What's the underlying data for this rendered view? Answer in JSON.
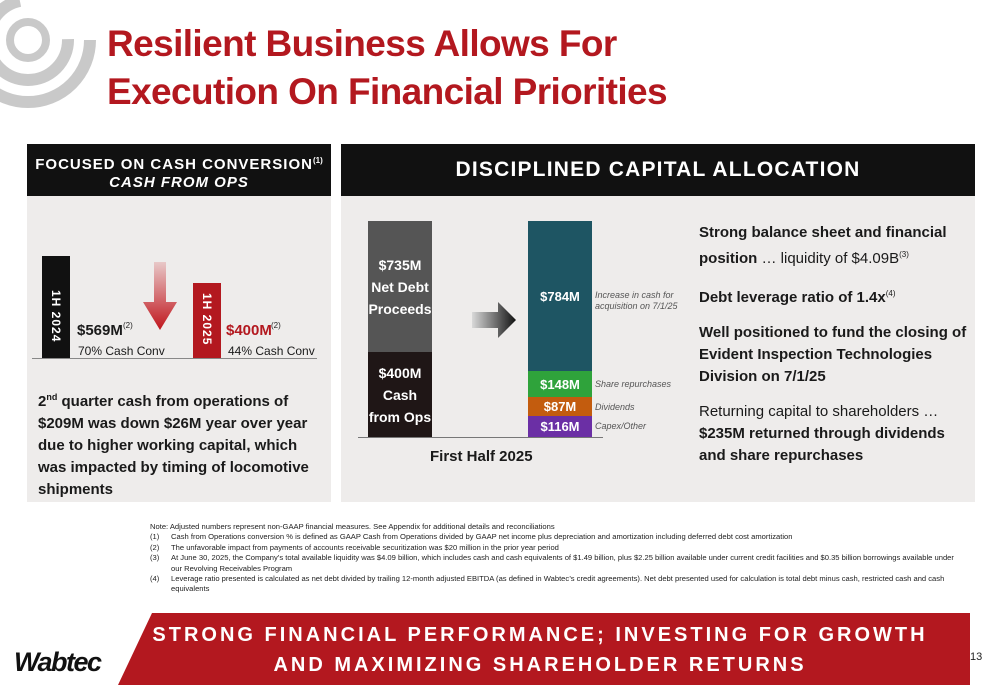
{
  "title": {
    "line1": "Resilient Business Allows For",
    "line2": "Execution On Financial Priorities"
  },
  "left_panel": {
    "header_line1": "FOCUSED ON CASH CONVERSION",
    "header_sup": "(1)",
    "header_line2": "CASH FROM OPS",
    "bar_2024_label": "1H 2024",
    "bar_2024_value": "$569M",
    "bar_2024_sup": "(2)",
    "bar_2024_conv": "70% Cash Conv",
    "bar_2025_label": "1H 2025",
    "bar_2025_value": "$400M",
    "bar_2025_sup": "(2)",
    "bar_2025_conv": "44% Cash Conv",
    "body_ord": "2",
    "body_ord_suffix": "nd",
    "body_rest": " quarter cash from operations of $209M was down $26M year over year due to higher working capital, which was impacted by timing of locomotive shipments"
  },
  "right_panel": {
    "header": "DISCIPLINED CAPITAL ALLOCATION",
    "chart_xlabel": "First Half 2025",
    "sources": {
      "proceeds_value": "$735M",
      "proceeds_label1": "Net Debt",
      "proceeds_label2": "Proceeds",
      "ops_value": "$400M",
      "ops_label1": "Cash",
      "ops_label2": "from Ops"
    },
    "uses": {
      "increase_value": "$784M",
      "increase_note1": "Increase in cash for",
      "increase_note2": "acquisition on 7/1/25",
      "share_value": "$148M",
      "share_note": "Share repurchases",
      "div_value": "$87M",
      "div_note": "Dividends",
      "capex_value": "$116M",
      "capex_note": "Capex/Other"
    },
    "text": {
      "p1_bold": "Strong balance sheet and financial position",
      "p1_rest": " … liquidity of $4.09B",
      "p1_sup": "(3)",
      "p2_bold": "Debt leverage ratio of 1.4x",
      "p2_sup": "(4)",
      "p3_bold": "Well positioned to fund the closing of Evident Inspection Technologies Division on 7/1/25",
      "p4_plain": "Returning capital to shareholders …",
      "p4_bold": "$235M returned through dividends and share repurchases"
    }
  },
  "notes": {
    "intro": "Note: Adjusted numbers represent non-GAAP financial measures.  See Appendix for additional details and reconciliations",
    "items": [
      {
        "num": "(1)",
        "text": "Cash from Operations conversion % is defined as GAAP Cash from Operations divided by GAAP net income plus depreciation and amortization including deferred debt cost amortization"
      },
      {
        "num": "(2)",
        "text": "The unfavorable impact from payments of accounts receivable securitization was $20 million in the prior year period"
      },
      {
        "num": "(3)",
        "text": "At June 30, 2025, the Company’s total available liquidity was $4.09 billion, which includes cash and cash equivalents of $1.49 billion, plus $2.25 billion available under current credit facilities and $0.35 billion borrowings available under our Revolving Receivables Program"
      },
      {
        "num": "(4)",
        "text": "Leverage ratio presented is calculated as net debt divided by trailing 12-month adjusted EBITDA (as defined in Wabtec’s credit agreements). Net debt presented used for calculation is total debt minus cash, restricted cash and cash equivalents"
      }
    ]
  },
  "banner": {
    "line1": "STRONG FINANCIAL PERFORMANCE; INVESTING FOR GROWTH",
    "line2": "AND MAXIMIZING SHAREHOLDER RETURNS"
  },
  "brand": "Wabtec",
  "page_number": "13",
  "colors": {
    "brand_red": "#b3181f",
    "panel_bg": "#eeeceb",
    "header_black": "#111111",
    "teal": "#1e5563",
    "green": "#2fa33b",
    "orange": "#c35c0e",
    "purple": "#6b2fa5"
  },
  "icons": {
    "corner_logo": "wabtec-swirl-icon",
    "down_arrow": "down-arrow-icon",
    "flow_arrow": "right-arrow-icon"
  }
}
